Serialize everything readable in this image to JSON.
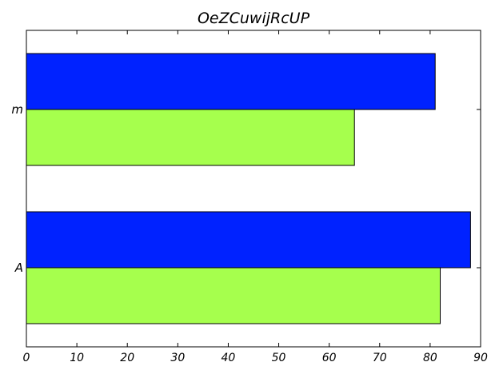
{
  "chart_data": {
    "type": "bar",
    "orientation": "horizontal",
    "title": "OeZCuwijRcUP",
    "categories": [
      "A",
      "m"
    ],
    "series": [
      {
        "color": "#a6ff4d",
        "values": [
          82,
          65
        ]
      },
      {
        "color": "#0022ff",
        "values": [
          88,
          81
        ]
      }
    ],
    "xlim": [
      0,
      90
    ],
    "xticks": [
      0,
      10,
      20,
      30,
      40,
      50,
      60,
      70,
      80,
      90
    ],
    "grid": false,
    "xlabel": "",
    "ylabel": ""
  }
}
